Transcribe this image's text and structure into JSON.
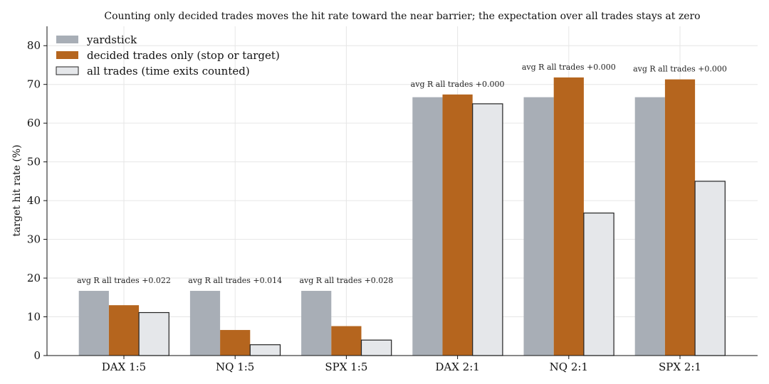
{
  "chart_data": {
    "type": "bar",
    "title": "Counting only decided trades moves the hit rate toward the near barrier; the expectation over all trades stays at zero",
    "xlabel": "",
    "ylabel": "target hit rate (%)",
    "ylim": [
      0,
      85
    ],
    "yticks": [
      0,
      10,
      20,
      30,
      40,
      50,
      60,
      70,
      80
    ],
    "grid": true,
    "legend_position": "top-left",
    "categories": [
      "DAX 1:5",
      "NQ 1:5",
      "SPX 1:5",
      "DAX 2:1",
      "NQ 2:1",
      "SPX 2:1"
    ],
    "series": [
      {
        "name": "yardstick",
        "color": "#a8aeb6",
        "values": [
          16.7,
          16.7,
          16.7,
          66.7,
          66.7,
          66.7
        ]
      },
      {
        "name": "decided trades only (stop or target)",
        "color": "#b5651e",
        "values": [
          13.0,
          6.6,
          7.6,
          67.4,
          71.8,
          71.3
        ]
      },
      {
        "name": "all trades (time exits counted)",
        "color": "#e5e7ea",
        "edge": "#222222",
        "values": [
          11.1,
          2.8,
          4.0,
          65.0,
          36.8,
          45.0
        ]
      }
    ],
    "annotations": [
      "avg R all trades +0.022",
      "avg R all trades +0.014",
      "avg R all trades +0.028",
      "avg R all trades +0.000",
      "avg R all trades +0.000",
      "avg R all trades +0.000"
    ]
  }
}
